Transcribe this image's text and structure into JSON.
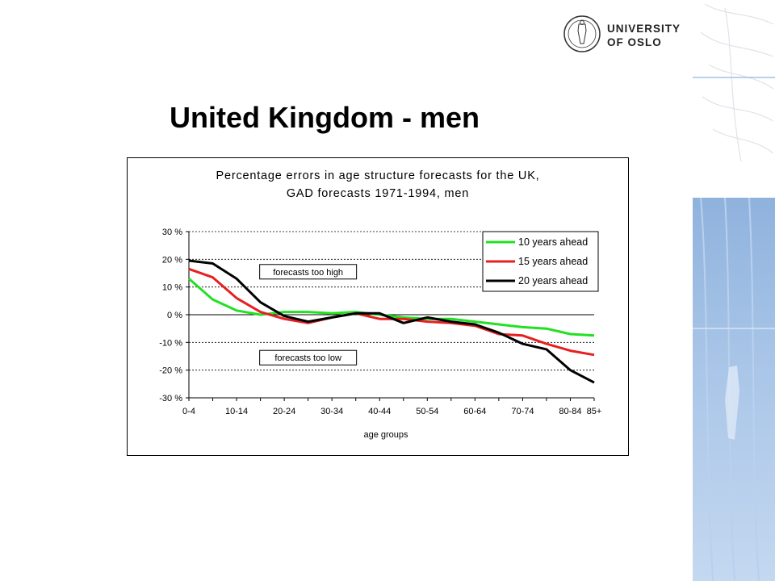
{
  "slide": {
    "title": "United Kingdom - men",
    "logo_text": "UNIVERSITY\nOF OSLO"
  },
  "chart_data": {
    "type": "line",
    "title": "Percentage errors in age structure forecasts for the UK,",
    "subtitle": "GAD forecasts 1971-1994, men",
    "xlabel": "age groups",
    "ylabel": "",
    "x": [
      "0-4",
      "5-9",
      "10-14",
      "15-19",
      "20-24",
      "25-29",
      "30-34",
      "35-39",
      "40-44",
      "45-49",
      "50-54",
      "55-59",
      "60-64",
      "65-69",
      "70-74",
      "75-79",
      "80-84",
      "85+"
    ],
    "x_tick_labels": [
      "0-4",
      "10-14",
      "20-24",
      "30-34",
      "40-44",
      "50-54",
      "60-64",
      "70-74",
      "80-84",
      "85+"
    ],
    "ylim": [
      -30,
      30
    ],
    "yticks": [
      30,
      20,
      10,
      0,
      -10,
      -20,
      -30
    ],
    "ytick_labels": [
      "30 %",
      "20 %",
      "10 %",
      "0 %",
      "-10 %",
      "-20 %",
      "-30 %"
    ],
    "grid": "horizontal dashed",
    "legend": "top-right",
    "series": [
      {
        "name": "10 years ahead",
        "color": "#22e022",
        "values": [
          13,
          5.5,
          1.5,
          0,
          1,
          1,
          0.5,
          1,
          0,
          -1,
          -1.5,
          -1.5,
          -2.5,
          -3.5,
          -4.5,
          -5,
          -7,
          -7.5
        ]
      },
      {
        "name": "15 years ahead",
        "color": "#e62020",
        "values": [
          16.5,
          13.5,
          6,
          1,
          -1.5,
          -3,
          -1,
          0.5,
          -1.5,
          -1.5,
          -2.5,
          -3,
          -4,
          -7,
          -7.5,
          -10.5,
          -13,
          -14.5
        ]
      },
      {
        "name": "20 years ahead",
        "color": "#000000",
        "values": [
          19.5,
          18.5,
          13,
          4.5,
          -0.5,
          -2.5,
          -1,
          0.5,
          0.5,
          -3,
          -1,
          -2.5,
          -3.5,
          -6.5,
          -10.5,
          -12.5,
          -20,
          -24.5
        ]
      }
    ],
    "annotations": [
      {
        "text": "forecasts too high",
        "at_x": "25-29",
        "at_y": 15.5
      },
      {
        "text": "forecasts too low",
        "at_x": "25-29",
        "at_y": -15.5
      }
    ]
  }
}
